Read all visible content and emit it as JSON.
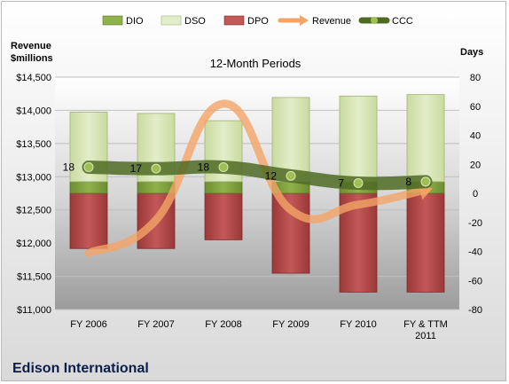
{
  "chart_data": {
    "type": "bar",
    "title": "12-Month Periods",
    "company": "Edison International",
    "left_axis": {
      "label_line1": "Revenue",
      "label_line2": "$millions",
      "ticks": [
        "$14,500",
        "$14,000",
        "$13,500",
        "$13,000",
        "$12,500",
        "$12,000",
        "$11,500",
        "$11,000"
      ],
      "ylim": [
        11000,
        14500
      ]
    },
    "right_axis": {
      "label": "Days",
      "ticks": [
        "80",
        "60",
        "40",
        "20",
        "0",
        "-20",
        "-40",
        "-60",
        "-80"
      ],
      "ylim": [
        -80,
        80
      ]
    },
    "categories": [
      "FY 2006",
      "FY 2007",
      "FY 2008",
      "FY 2009",
      "FY 2010",
      "FY & TTM 2011"
    ],
    "category_lines": [
      [
        "FY 2006"
      ],
      [
        "FY 2007"
      ],
      [
        "FY 2008"
      ],
      [
        "FY 2009"
      ],
      [
        "FY 2010"
      ],
      [
        "FY & TTM",
        "2011"
      ]
    ],
    "legend": {
      "placement": "top",
      "entries": [
        "DIO",
        "DSO",
        "DPO",
        "Revenue",
        "CCC"
      ]
    },
    "series": [
      {
        "name": "DIO",
        "axis": "right",
        "type": "stacked-bar",
        "values": [
          8,
          8,
          8,
          8,
          8,
          8
        ],
        "color": "#7a9a3a"
      },
      {
        "name": "DSO",
        "axis": "right",
        "type": "stacked-bar",
        "values": [
          48,
          47,
          42,
          58,
          59,
          60
        ],
        "color": "#d7e4b4"
      },
      {
        "name": "DPO",
        "axis": "right",
        "type": "bar-negative",
        "values": [
          -38,
          -38,
          -32,
          -55,
          -68,
          -68
        ],
        "color": "#a94040"
      },
      {
        "name": "Revenue",
        "axis": "left",
        "type": "line",
        "values": [
          11850,
          12350,
          14100,
          12500,
          12580,
          12800
        ],
        "color": "#f4a466"
      },
      {
        "name": "CCC",
        "axis": "right",
        "type": "line",
        "values": [
          18,
          17,
          18,
          12,
          7,
          8
        ],
        "labels": [
          "18",
          "17",
          "18",
          "12",
          "7",
          "8"
        ],
        "color": "#4f6b23"
      }
    ],
    "grid": true
  }
}
